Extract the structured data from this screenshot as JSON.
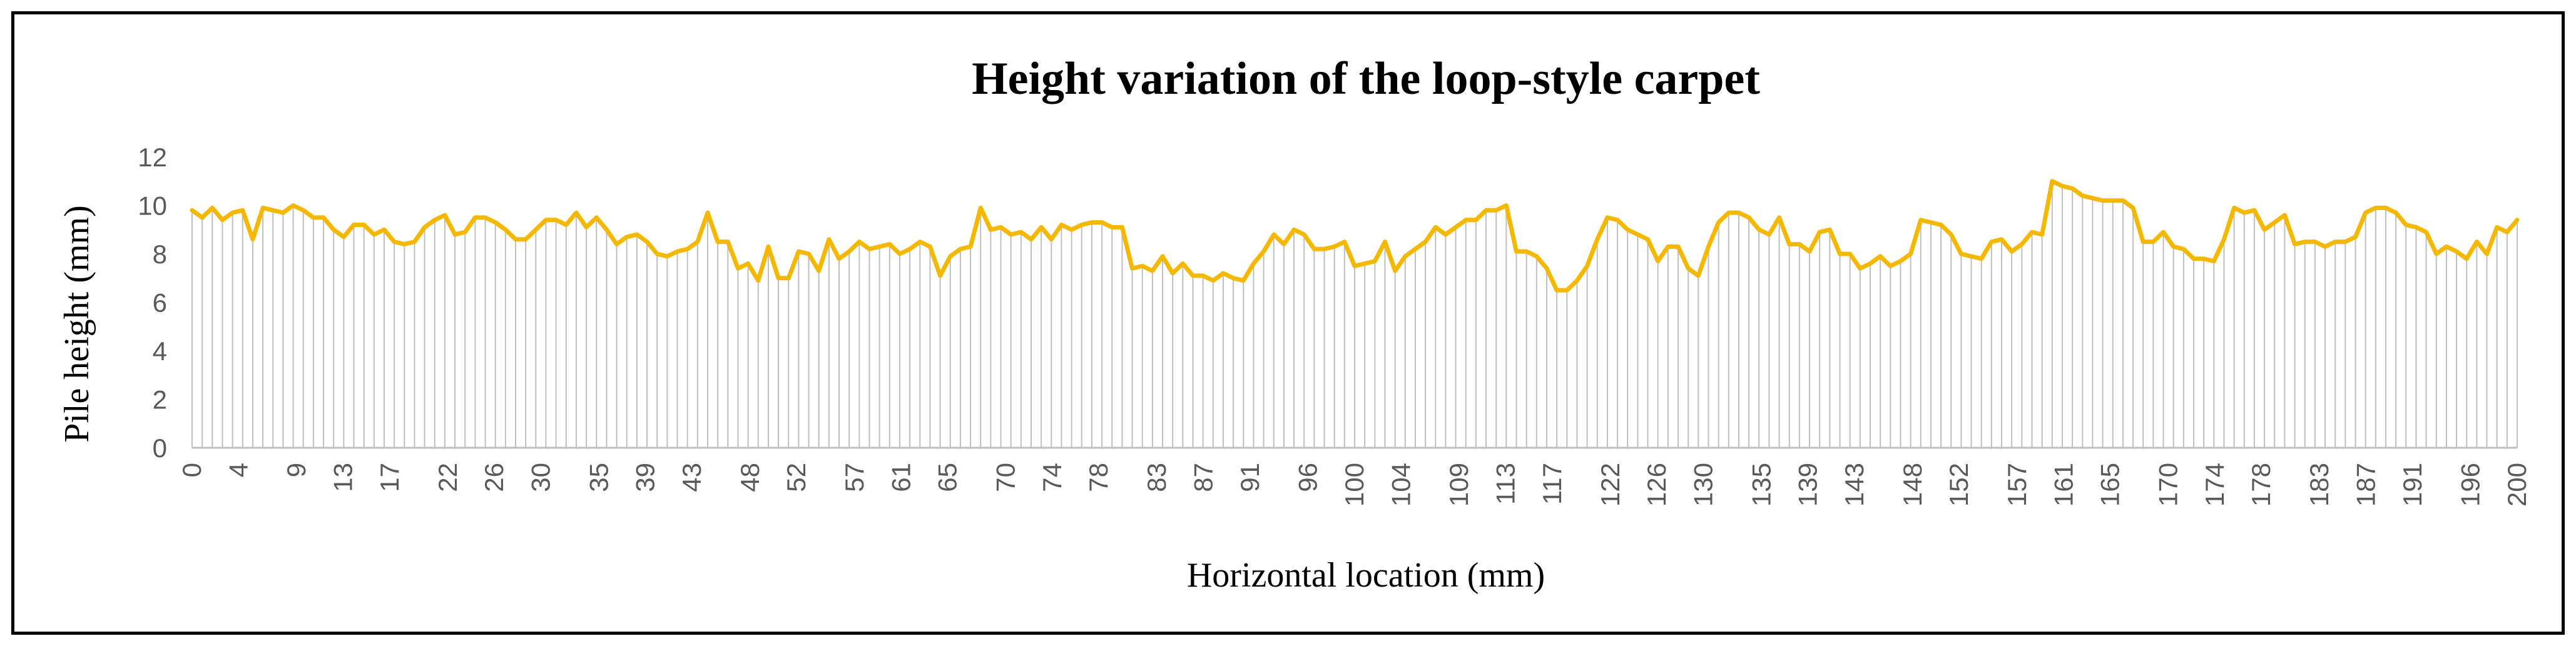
{
  "chart_data": {
    "type": "line",
    "title": "Height variation of the loop-style carpet",
    "xlabel": "Horizontal location (mm)",
    "ylabel": "Pile height (mm)",
    "xlim": [
      0,
      200
    ],
    "ylim": [
      0,
      12
    ],
    "y_ticks": [
      "0",
      "2",
      "4",
      "6",
      "8",
      "10",
      "12"
    ],
    "x_tick_labels": [
      "0",
      "4",
      "9",
      "13",
      "17",
      "22",
      "26",
      "30",
      "35",
      "39",
      "43",
      "48",
      "52",
      "57",
      "61",
      "65",
      "70",
      "74",
      "78",
      "83",
      "87",
      "91",
      "96",
      "100",
      "104",
      "109",
      "113",
      "117",
      "122",
      "126",
      "130",
      "135",
      "139",
      "143",
      "148",
      "152",
      "157",
      "161",
      "165",
      "170",
      "174",
      "178",
      "183",
      "187",
      "191",
      "196",
      "200"
    ],
    "grid": false,
    "drop_lines": true,
    "legend": "none",
    "colors": {
      "line": "#F5B800",
      "drop_line": "#BFBFBF",
      "frame": "#000000"
    },
    "series": [
      {
        "values": [
          9.8,
          9.5,
          9.9,
          9.4,
          9.7,
          9.8,
          8.6,
          9.9,
          9.8,
          9.7,
          10.0,
          9.8,
          9.5,
          9.5,
          9.0,
          8.7,
          9.2,
          9.2,
          8.8,
          9.0,
          8.5,
          8.4,
          8.5,
          9.1,
          9.4,
          9.6,
          8.8,
          8.9,
          9.5,
          9.5,
          9.3,
          9.0,
          8.6,
          8.6,
          9.0,
          9.4,
          9.4,
          9.2,
          9.7,
          9.1,
          9.5,
          9.0,
          8.4,
          8.7,
          8.8,
          8.5,
          8.0,
          7.9,
          8.1,
          8.2,
          8.5,
          9.7,
          8.5,
          8.5,
          7.4,
          7.6,
          6.9,
          8.3,
          7.0,
          7.0,
          8.1,
          8.0,
          7.3,
          8.6,
          7.8,
          8.1,
          8.5,
          8.2,
          8.3,
          8.4,
          8.0,
          8.2,
          8.5,
          8.3,
          7.1,
          7.9,
          8.2,
          8.3,
          9.9,
          9.0,
          9.1,
          8.8,
          8.9,
          8.6,
          9.1,
          8.6,
          9.2,
          9.0,
          9.2,
          9.3,
          9.3,
          9.1,
          9.1,
          7.4,
          7.5,
          7.3,
          7.9,
          7.2,
          7.6,
          7.1,
          7.1,
          6.9,
          7.2,
          7.0,
          6.9,
          7.6,
          8.1,
          8.8,
          8.4,
          9.0,
          8.8,
          8.2,
          8.2,
          8.3,
          8.5,
          7.5,
          7.6,
          7.7,
          8.5,
          7.3,
          7.9,
          8.2,
          8.5,
          9.1,
          8.8,
          9.1,
          9.4,
          9.4,
          9.8,
          9.8,
          10.0,
          8.1,
          8.1,
          7.9,
          7.4,
          6.5,
          6.5,
          6.9,
          7.5,
          8.6,
          9.5,
          9.4,
          9.0,
          8.8,
          8.6,
          7.7,
          8.3,
          8.3,
          7.4,
          7.1,
          8.3,
          9.3,
          9.7,
          9.7,
          9.5,
          9.0,
          8.8,
          9.5,
          8.4,
          8.4,
          8.1,
          8.9,
          9.0,
          8.0,
          8.0,
          7.4,
          7.6,
          7.9,
          7.5,
          7.7,
          8.0,
          9.4,
          9.3,
          9.2,
          8.8,
          8.0,
          7.9,
          7.8,
          8.5,
          8.6,
          8.1,
          8.4,
          8.9,
          8.8,
          11.0,
          10.8,
          10.7,
          10.4,
          10.3,
          10.2,
          10.2,
          10.2,
          9.9,
          8.5,
          8.5,
          8.9,
          8.3,
          8.2,
          7.8,
          7.8,
          7.7,
          8.6,
          9.9,
          9.7,
          9.8,
          9.0,
          9.3,
          9.6,
          8.4,
          8.5,
          8.5,
          8.3,
          8.5,
          8.5,
          8.7,
          9.7,
          9.9,
          9.9,
          9.7,
          9.2,
          9.1,
          8.9,
          8.0,
          8.3,
          8.1,
          7.8,
          8.5,
          8.0,
          9.1,
          8.9,
          9.4
        ]
      }
    ]
  }
}
